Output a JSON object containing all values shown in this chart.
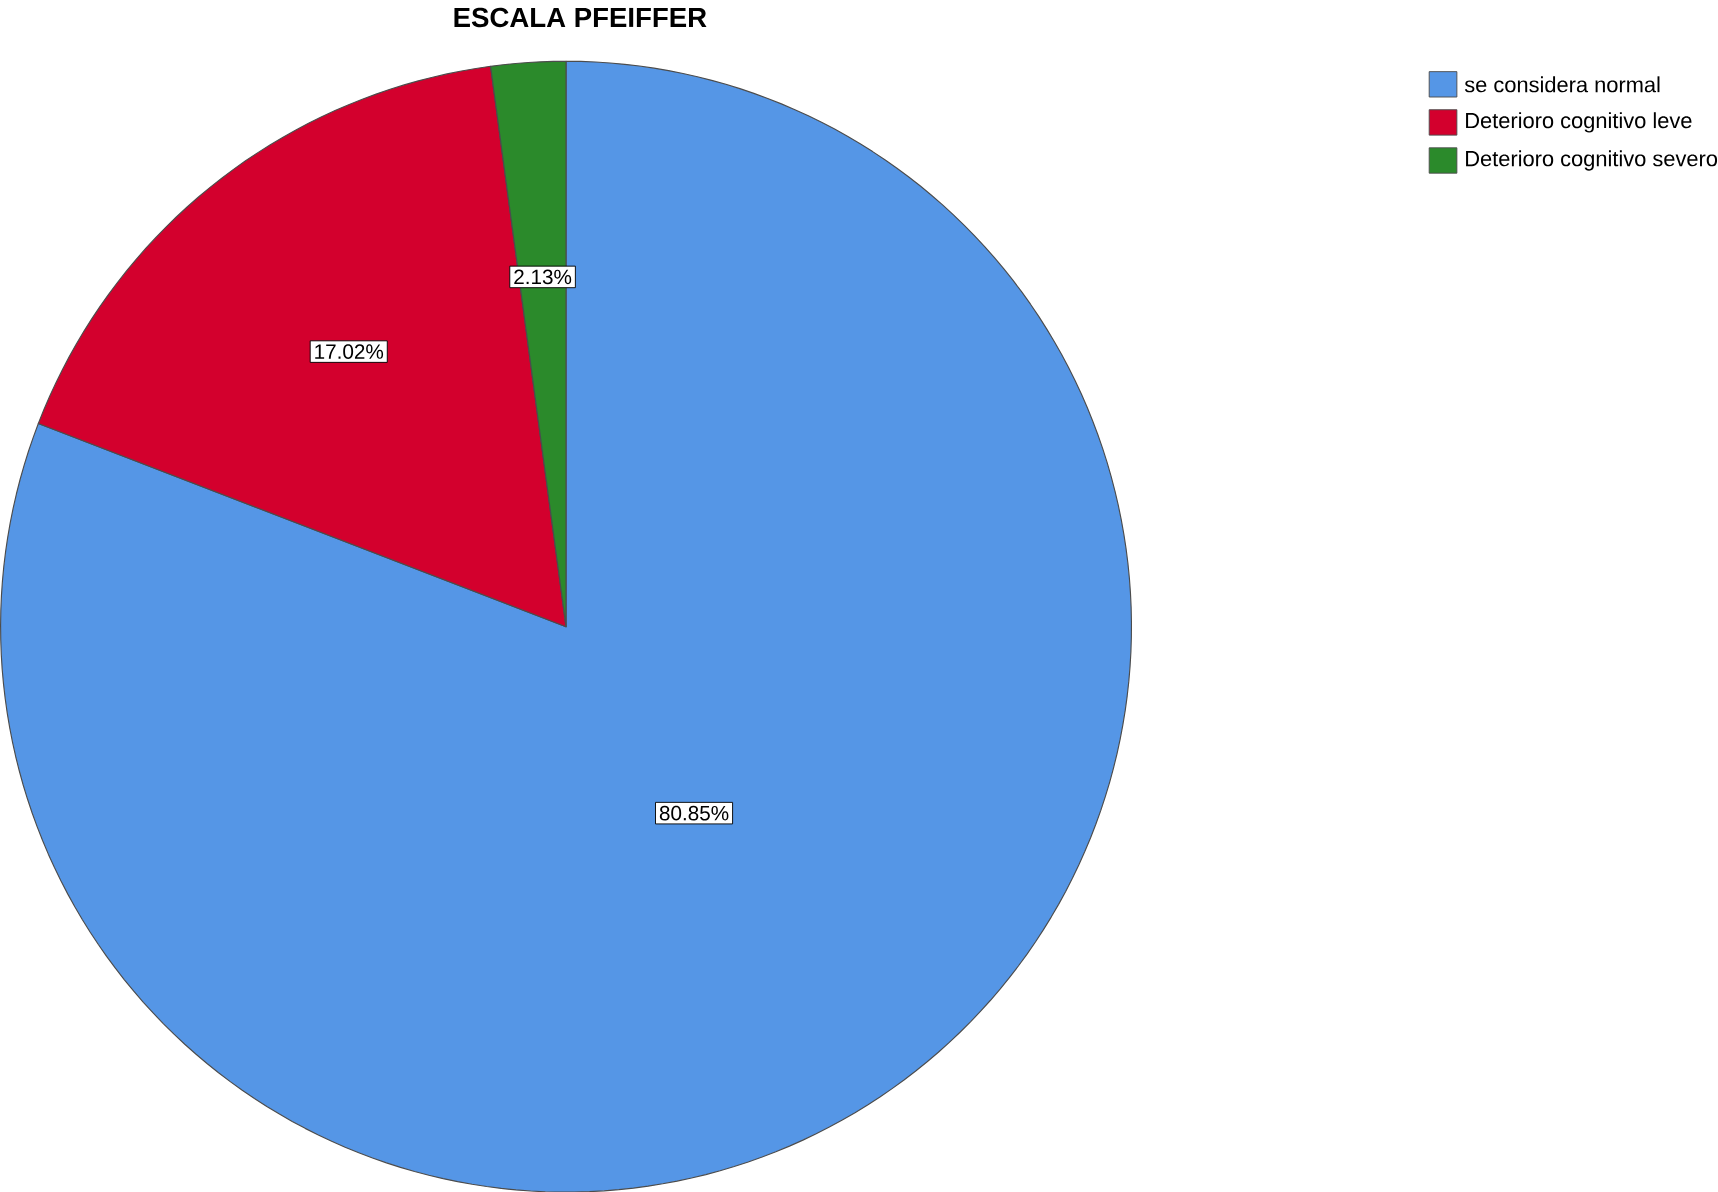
{
  "chart_data": {
    "type": "pie",
    "title": "ESCALA PFEIFFER",
    "categories": [
      "se considera normal",
      "Deterioro cognitivo leve",
      "Deterioro cognitivo severo"
    ],
    "values": [
      80.85,
      17.02,
      2.13
    ],
    "colors": [
      "#5596e6",
      "#d3002d",
      "#2b8a2b"
    ],
    "value_labels": [
      "80.85%",
      "17.02%",
      "2.13%"
    ],
    "legend": "top right"
  }
}
